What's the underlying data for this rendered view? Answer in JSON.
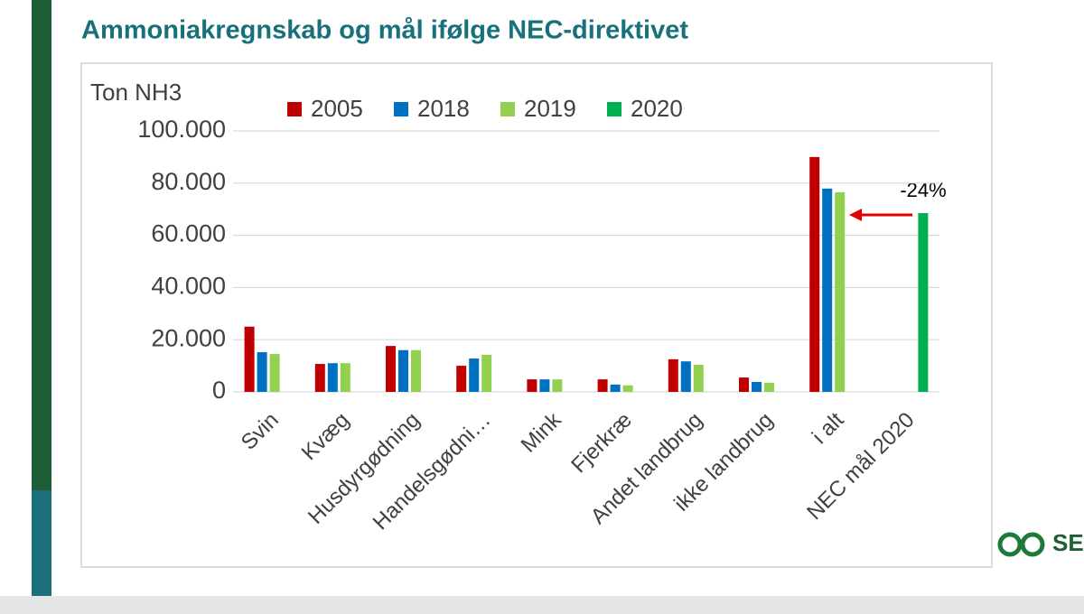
{
  "chart_data": {
    "type": "bar",
    "title": "Ammoniakregnskab og mål ifølge NEC-direktivet",
    "y_label": "Ton NH3",
    "categories": [
      "Svin",
      "Kvæg",
      "Husdyrgødning",
      "Handelsgødni…",
      "Mink",
      "Fjerkræ",
      "Andet landbrug",
      "ikke landbrug",
      "i alt",
      "NEC mål 2020"
    ],
    "series": [
      {
        "name": "2005",
        "color": "#c00000",
        "values": [
          25000,
          10700,
          17600,
          10000,
          4800,
          4800,
          12500,
          5500,
          90000,
          null
        ]
      },
      {
        "name": "2018",
        "color": "#0070c0",
        "values": [
          15200,
          11000,
          16000,
          12800,
          4800,
          2800,
          11700,
          3800,
          77900,
          null
        ]
      },
      {
        "name": "2019",
        "color": "#92d050",
        "values": [
          14500,
          11000,
          16000,
          14200,
          4800,
          2500,
          10400,
          3500,
          76500,
          null
        ]
      },
      {
        "name": "2020",
        "color": "#00b050",
        "values": [
          null,
          null,
          null,
          null,
          null,
          null,
          null,
          null,
          null,
          68500
        ]
      }
    ],
    "ylim": [
      0,
      100000
    ],
    "yticks": [
      0,
      {
        "value": 20000,
        "label": "20.000"
      },
      {
        "value": 40000,
        "label": "40.000"
      },
      {
        "value": 60000,
        "label": "60.000"
      },
      {
        "value": 80000,
        "label": "80.000"
      },
      {
        "value": 100000,
        "label": "100.000"
      }
    ],
    "grid": true,
    "annotation": "-24%",
    "logo_text": "SE"
  }
}
